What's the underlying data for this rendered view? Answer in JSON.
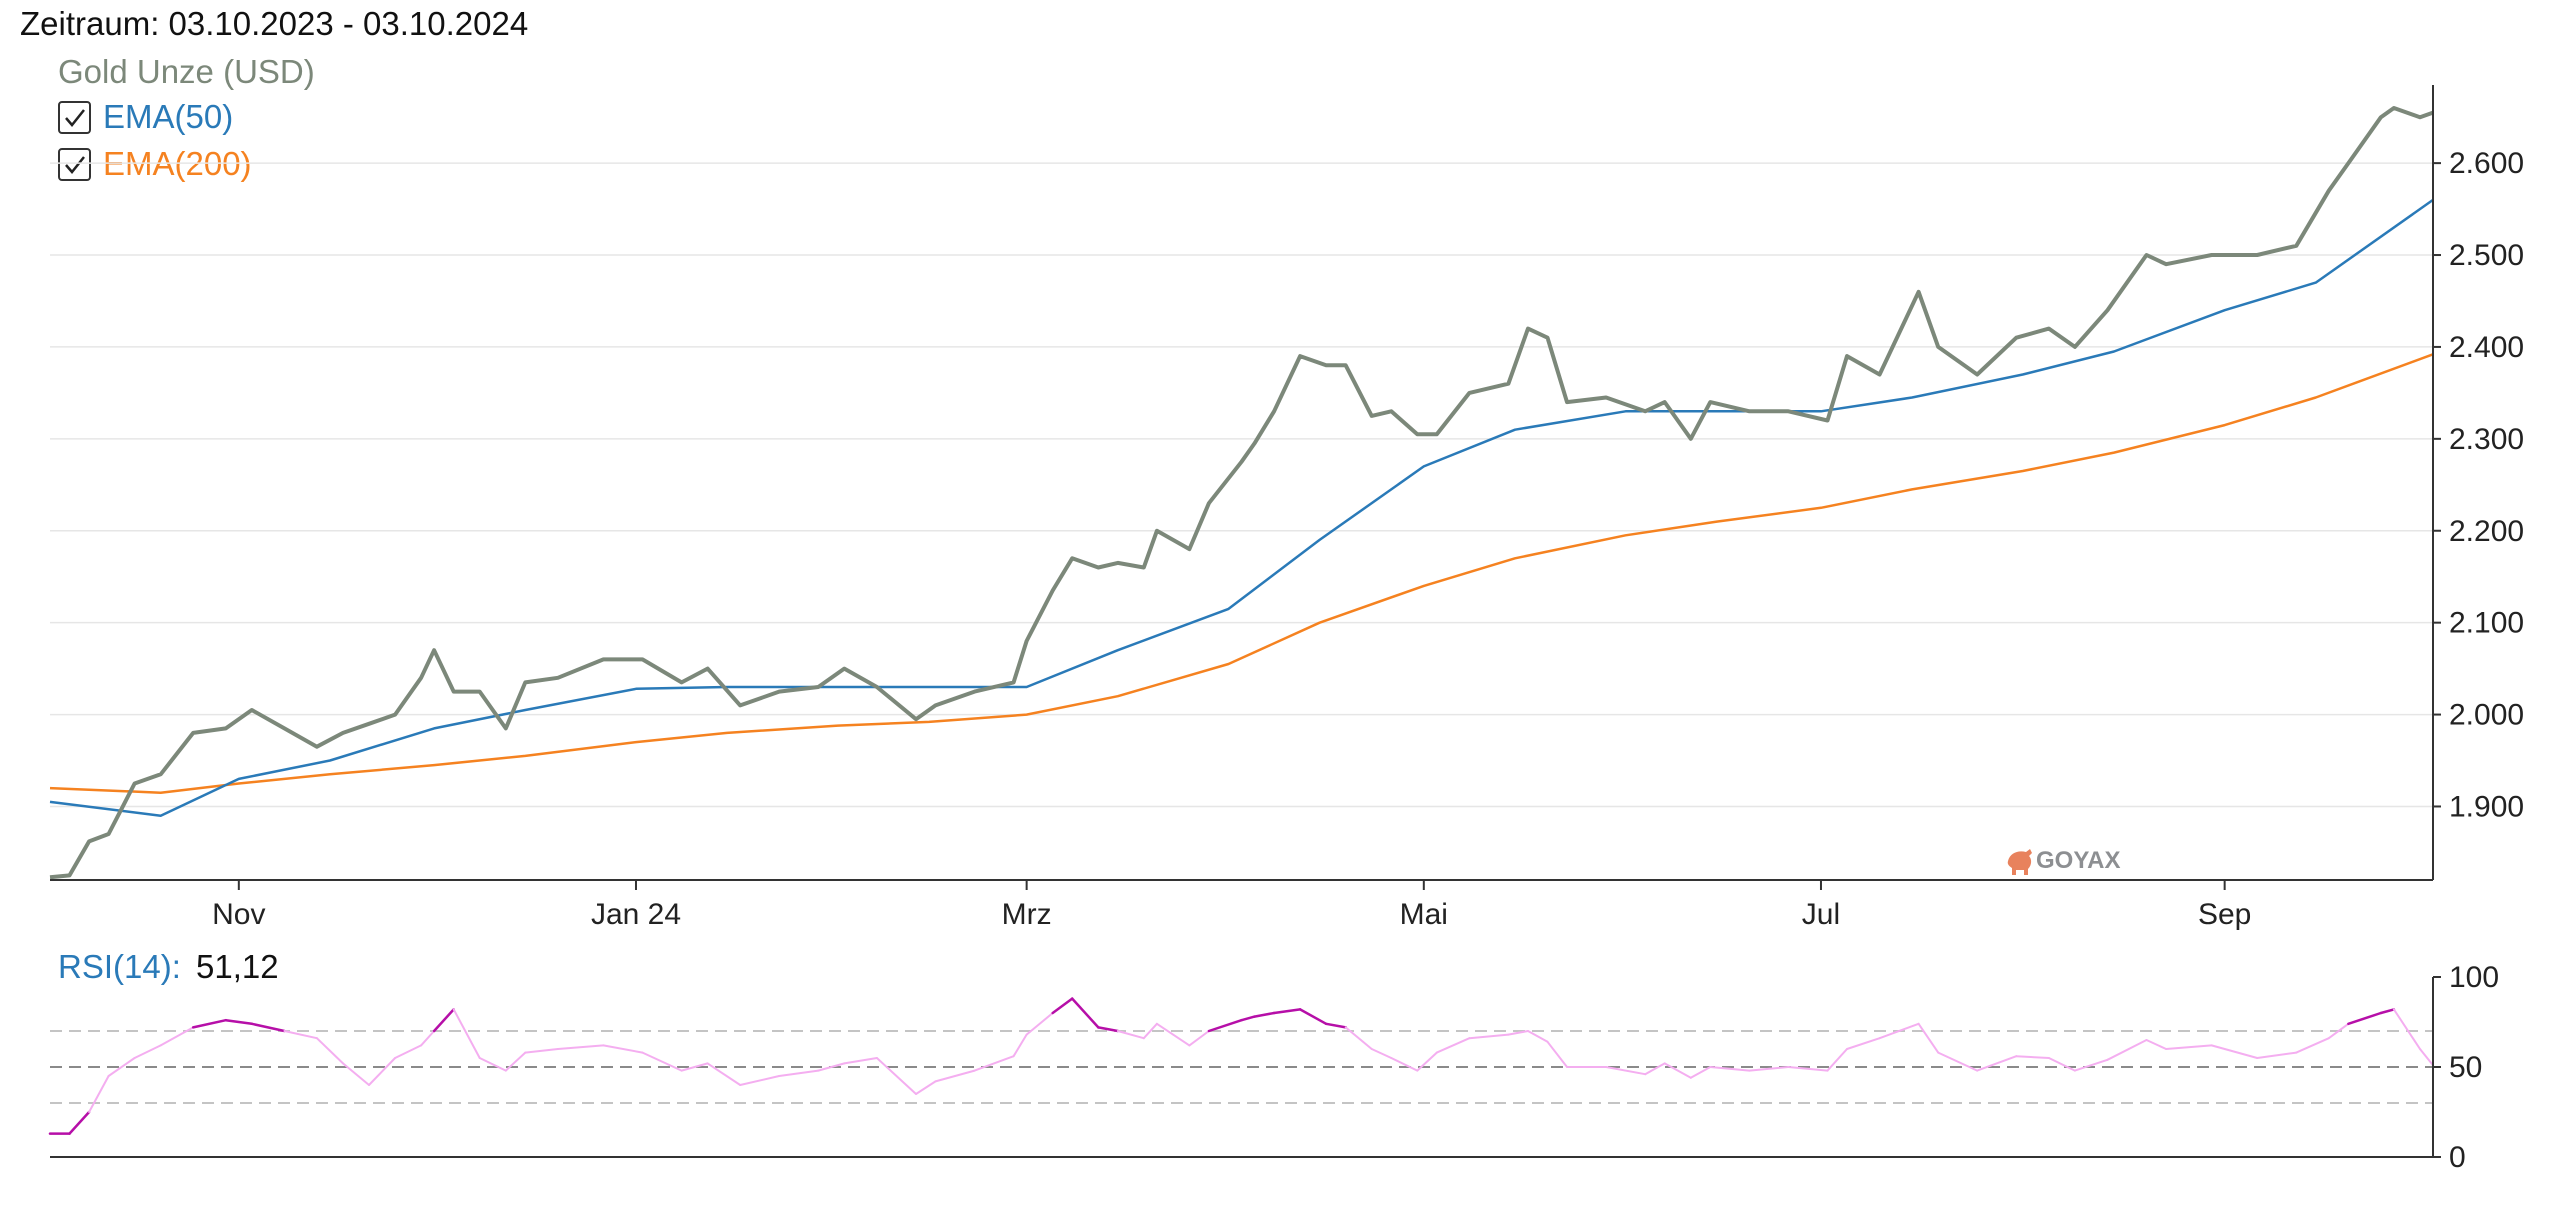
{
  "header": {
    "period": "Zeitraum: 03.10.2023 - 03.10.2024"
  },
  "legend": {
    "items": [
      {
        "label": "Gold Unze (USD)",
        "color": "#7c887a",
        "checkbox": false
      },
      {
        "label": "EMA(50)",
        "color": "#2a7ab8",
        "checkbox": true,
        "checked": true,
        "check_icon": "checkmark-icon"
      },
      {
        "label": "EMA(200)",
        "color": "#f58220",
        "checkbox": true,
        "checked": true,
        "check_icon": "checkmark-icon"
      }
    ]
  },
  "watermark": {
    "text": "GOYAX",
    "icon": "bull-logo-icon",
    "color": "#e8825d"
  },
  "rsi_header": {
    "label": "RSI(14):",
    "value": "51,12",
    "label_color": "#2a7ab8"
  },
  "chart_data": [
    {
      "type": "line",
      "title": "",
      "xlabel": "",
      "ylabel": "",
      "x_range": [
        "2023-10-03",
        "2024-10-03"
      ],
      "ylim": [
        1820,
        2685
      ],
      "y_ticks": [
        1900,
        2000,
        2100,
        2200,
        2300,
        2400,
        2500,
        2600
      ],
      "y_tick_labels": [
        "1.900",
        "2.000",
        "2.100",
        "2.200",
        "2.300",
        "2.400",
        "2.500",
        "2.600"
      ],
      "x_ticks": [
        {
          "date": "2023-11-01",
          "label": "Nov"
        },
        {
          "date": "2024-01-01",
          "label": "Jan 24"
        },
        {
          "date": "2024-03-01",
          "label": "Mrz"
        },
        {
          "date": "2024-05-01",
          "label": "Mai"
        },
        {
          "date": "2024-07-01",
          "label": "Jul"
        },
        {
          "date": "2024-09-01",
          "label": "Sep"
        }
      ],
      "grid": true,
      "legend_position": "top-left",
      "series": [
        {
          "name": "Gold Unze (USD)",
          "color": "#7c887a",
          "width": 4,
          "x": [
            "2023-10-03",
            "2023-10-06",
            "2023-10-09",
            "2023-10-12",
            "2023-10-16",
            "2023-10-20",
            "2023-10-25",
            "2023-10-30",
            "2023-11-03",
            "2023-11-08",
            "2023-11-13",
            "2023-11-17",
            "2023-11-21",
            "2023-11-25",
            "2023-11-29",
            "2023-12-01",
            "2023-12-04",
            "2023-12-08",
            "2023-12-12",
            "2023-12-15",
            "2023-12-20",
            "2023-12-27",
            "2024-01-02",
            "2024-01-08",
            "2024-01-12",
            "2024-01-17",
            "2024-01-23",
            "2024-01-29",
            "2024-02-02",
            "2024-02-07",
            "2024-02-13",
            "2024-02-16",
            "2024-02-22",
            "2024-02-28",
            "2024-03-01",
            "2024-03-05",
            "2024-03-08",
            "2024-03-12",
            "2024-03-15",
            "2024-03-19",
            "2024-03-21",
            "2024-03-26",
            "2024-03-29",
            "2024-04-03",
            "2024-04-05",
            "2024-04-08",
            "2024-04-12",
            "2024-04-16",
            "2024-04-19",
            "2024-04-23",
            "2024-04-26",
            "2024-04-30",
            "2024-05-03",
            "2024-05-08",
            "2024-05-14",
            "2024-05-17",
            "2024-05-20",
            "2024-05-23",
            "2024-05-29",
            "2024-06-04",
            "2024-06-07",
            "2024-06-11",
            "2024-06-14",
            "2024-06-20",
            "2024-06-26",
            "2024-07-02",
            "2024-07-05",
            "2024-07-10",
            "2024-07-16",
            "2024-07-19",
            "2024-07-25",
            "2024-07-31",
            "2024-08-05",
            "2024-08-09",
            "2024-08-14",
            "2024-08-20",
            "2024-08-23",
            "2024-08-30",
            "2024-09-06",
            "2024-09-12",
            "2024-09-17",
            "2024-09-20",
            "2024-09-25",
            "2024-09-27",
            "2024-10-01",
            "2024-10-03"
          ],
          "y": [
            1823,
            1825,
            1862,
            1870,
            1925,
            1935,
            1980,
            1985,
            2005,
            1985,
            1965,
            1980,
            1990,
            2000,
            2040,
            2070,
            2025,
            2025,
            1985,
            2035,
            2040,
            2060,
            2060,
            2035,
            2050,
            2010,
            2025,
            2030,
            2050,
            2030,
            1995,
            2010,
            2025,
            2035,
            2080,
            2135,
            2170,
            2160,
            2165,
            2160,
            2200,
            2180,
            2230,
            2275,
            2295,
            2330,
            2390,
            2380,
            2380,
            2325,
            2330,
            2305,
            2305,
            2350,
            2360,
            2420,
            2410,
            2340,
            2345,
            2330,
            2340,
            2300,
            2340,
            2330,
            2330,
            2320,
            2390,
            2370,
            2460,
            2400,
            2370,
            2410,
            2420,
            2400,
            2440,
            2500,
            2490,
            2500,
            2500,
            2510,
            2570,
            2600,
            2650,
            2660,
            2650,
            2655
          ]
        },
        {
          "name": "EMA(50)",
          "color": "#2a7ab8",
          "width": 2.5,
          "x": [
            "2023-10-03",
            "2023-10-20",
            "2023-11-01",
            "2023-11-15",
            "2023-12-01",
            "2023-12-15",
            "2024-01-01",
            "2024-01-15",
            "2024-02-01",
            "2024-02-15",
            "2024-03-01",
            "2024-03-15",
            "2024-04-01",
            "2024-04-15",
            "2024-05-01",
            "2024-05-15",
            "2024-06-01",
            "2024-06-15",
            "2024-07-01",
            "2024-07-15",
            "2024-08-01",
            "2024-08-15",
            "2024-09-01",
            "2024-09-15",
            "2024-10-03"
          ],
          "y": [
            1905,
            1890,
            1930,
            1950,
            1985,
            2005,
            2028,
            2030,
            2030,
            2030,
            2030,
            2070,
            2115,
            2190,
            2270,
            2310,
            2330,
            2330,
            2330,
            2345,
            2370,
            2395,
            2440,
            2470,
            2560
          ]
        },
        {
          "name": "EMA(200)",
          "color": "#f58220",
          "width": 2.5,
          "x": [
            "2023-10-03",
            "2023-10-20",
            "2023-11-01",
            "2023-11-15",
            "2023-12-01",
            "2023-12-15",
            "2024-01-01",
            "2024-01-15",
            "2024-02-01",
            "2024-02-15",
            "2024-03-01",
            "2024-03-15",
            "2024-04-01",
            "2024-04-15",
            "2024-05-01",
            "2024-05-15",
            "2024-06-01",
            "2024-06-15",
            "2024-07-01",
            "2024-07-15",
            "2024-08-01",
            "2024-08-15",
            "2024-09-01",
            "2024-09-15",
            "2024-10-03"
          ],
          "y": [
            1920,
            1915,
            1925,
            1935,
            1945,
            1955,
            1970,
            1980,
            1988,
            1992,
            2000,
            2020,
            2055,
            2100,
            2140,
            2170,
            2195,
            2210,
            2225,
            2245,
            2265,
            2285,
            2315,
            2345,
            2392
          ]
        }
      ]
    },
    {
      "type": "line",
      "title": "",
      "xlabel": "",
      "ylabel": "",
      "x_range": [
        "2023-10-03",
        "2024-10-03"
      ],
      "ylim": [
        0,
        100
      ],
      "y_ticks": [
        0,
        50,
        100
      ],
      "y_tick_labels": [
        "0",
        "50",
        "100"
      ],
      "reference_lines": [
        30,
        50,
        70
      ],
      "overbought_level": 70,
      "oversold_level": 30,
      "colors": {
        "normal": "#f4aef0",
        "extreme": "#b60fa8"
      },
      "series": [
        {
          "name": "RSI(14)",
          "x": [
            "2023-10-03",
            "2023-10-06",
            "2023-10-09",
            "2023-10-12",
            "2023-10-16",
            "2023-10-20",
            "2023-10-25",
            "2023-10-30",
            "2023-11-03",
            "2023-11-08",
            "2023-11-13",
            "2023-11-17",
            "2023-11-21",
            "2023-11-25",
            "2023-11-29",
            "2023-12-01",
            "2023-12-04",
            "2023-12-08",
            "2023-12-12",
            "2023-12-15",
            "2023-12-20",
            "2023-12-27",
            "2024-01-02",
            "2024-01-08",
            "2024-01-12",
            "2024-01-17",
            "2024-01-23",
            "2024-01-29",
            "2024-02-02",
            "2024-02-07",
            "2024-02-13",
            "2024-02-16",
            "2024-02-22",
            "2024-02-28",
            "2024-03-01",
            "2024-03-05",
            "2024-03-08",
            "2024-03-12",
            "2024-03-15",
            "2024-03-19",
            "2024-03-21",
            "2024-03-26",
            "2024-03-29",
            "2024-04-03",
            "2024-04-05",
            "2024-04-08",
            "2024-04-12",
            "2024-04-16",
            "2024-04-19",
            "2024-04-23",
            "2024-04-26",
            "2024-04-30",
            "2024-05-03",
            "2024-05-08",
            "2024-05-14",
            "2024-05-17",
            "2024-05-20",
            "2024-05-23",
            "2024-05-29",
            "2024-06-04",
            "2024-06-07",
            "2024-06-11",
            "2024-06-14",
            "2024-06-20",
            "2024-06-26",
            "2024-07-02",
            "2024-07-05",
            "2024-07-10",
            "2024-07-16",
            "2024-07-19",
            "2024-07-25",
            "2024-07-31",
            "2024-08-05",
            "2024-08-09",
            "2024-08-14",
            "2024-08-20",
            "2024-08-23",
            "2024-08-30",
            "2024-09-06",
            "2024-09-12",
            "2024-09-17",
            "2024-09-20",
            "2024-09-25",
            "2024-09-27",
            "2024-10-01",
            "2024-10-03"
          ],
          "y": [
            13,
            13,
            25,
            45,
            55,
            62,
            72,
            76,
            74,
            70,
            66,
            52,
            40,
            55,
            62,
            70,
            82,
            55,
            48,
            58,
            60,
            62,
            58,
            48,
            52,
            40,
            45,
            48,
            52,
            55,
            35,
            42,
            48,
            56,
            68,
            80,
            88,
            72,
            70,
            66,
            74,
            62,
            70,
            76,
            78,
            80,
            82,
            74,
            72,
            60,
            55,
            48,
            58,
            66,
            68,
            70,
            64,
            50,
            50,
            46,
            52,
            44,
            50,
            48,
            50,
            48,
            60,
            66,
            74,
            58,
            48,
            56,
            55,
            48,
            54,
            65,
            60,
            62,
            55,
            58,
            66,
            74,
            80,
            82,
            60,
            51
          ]
        }
      ]
    }
  ]
}
